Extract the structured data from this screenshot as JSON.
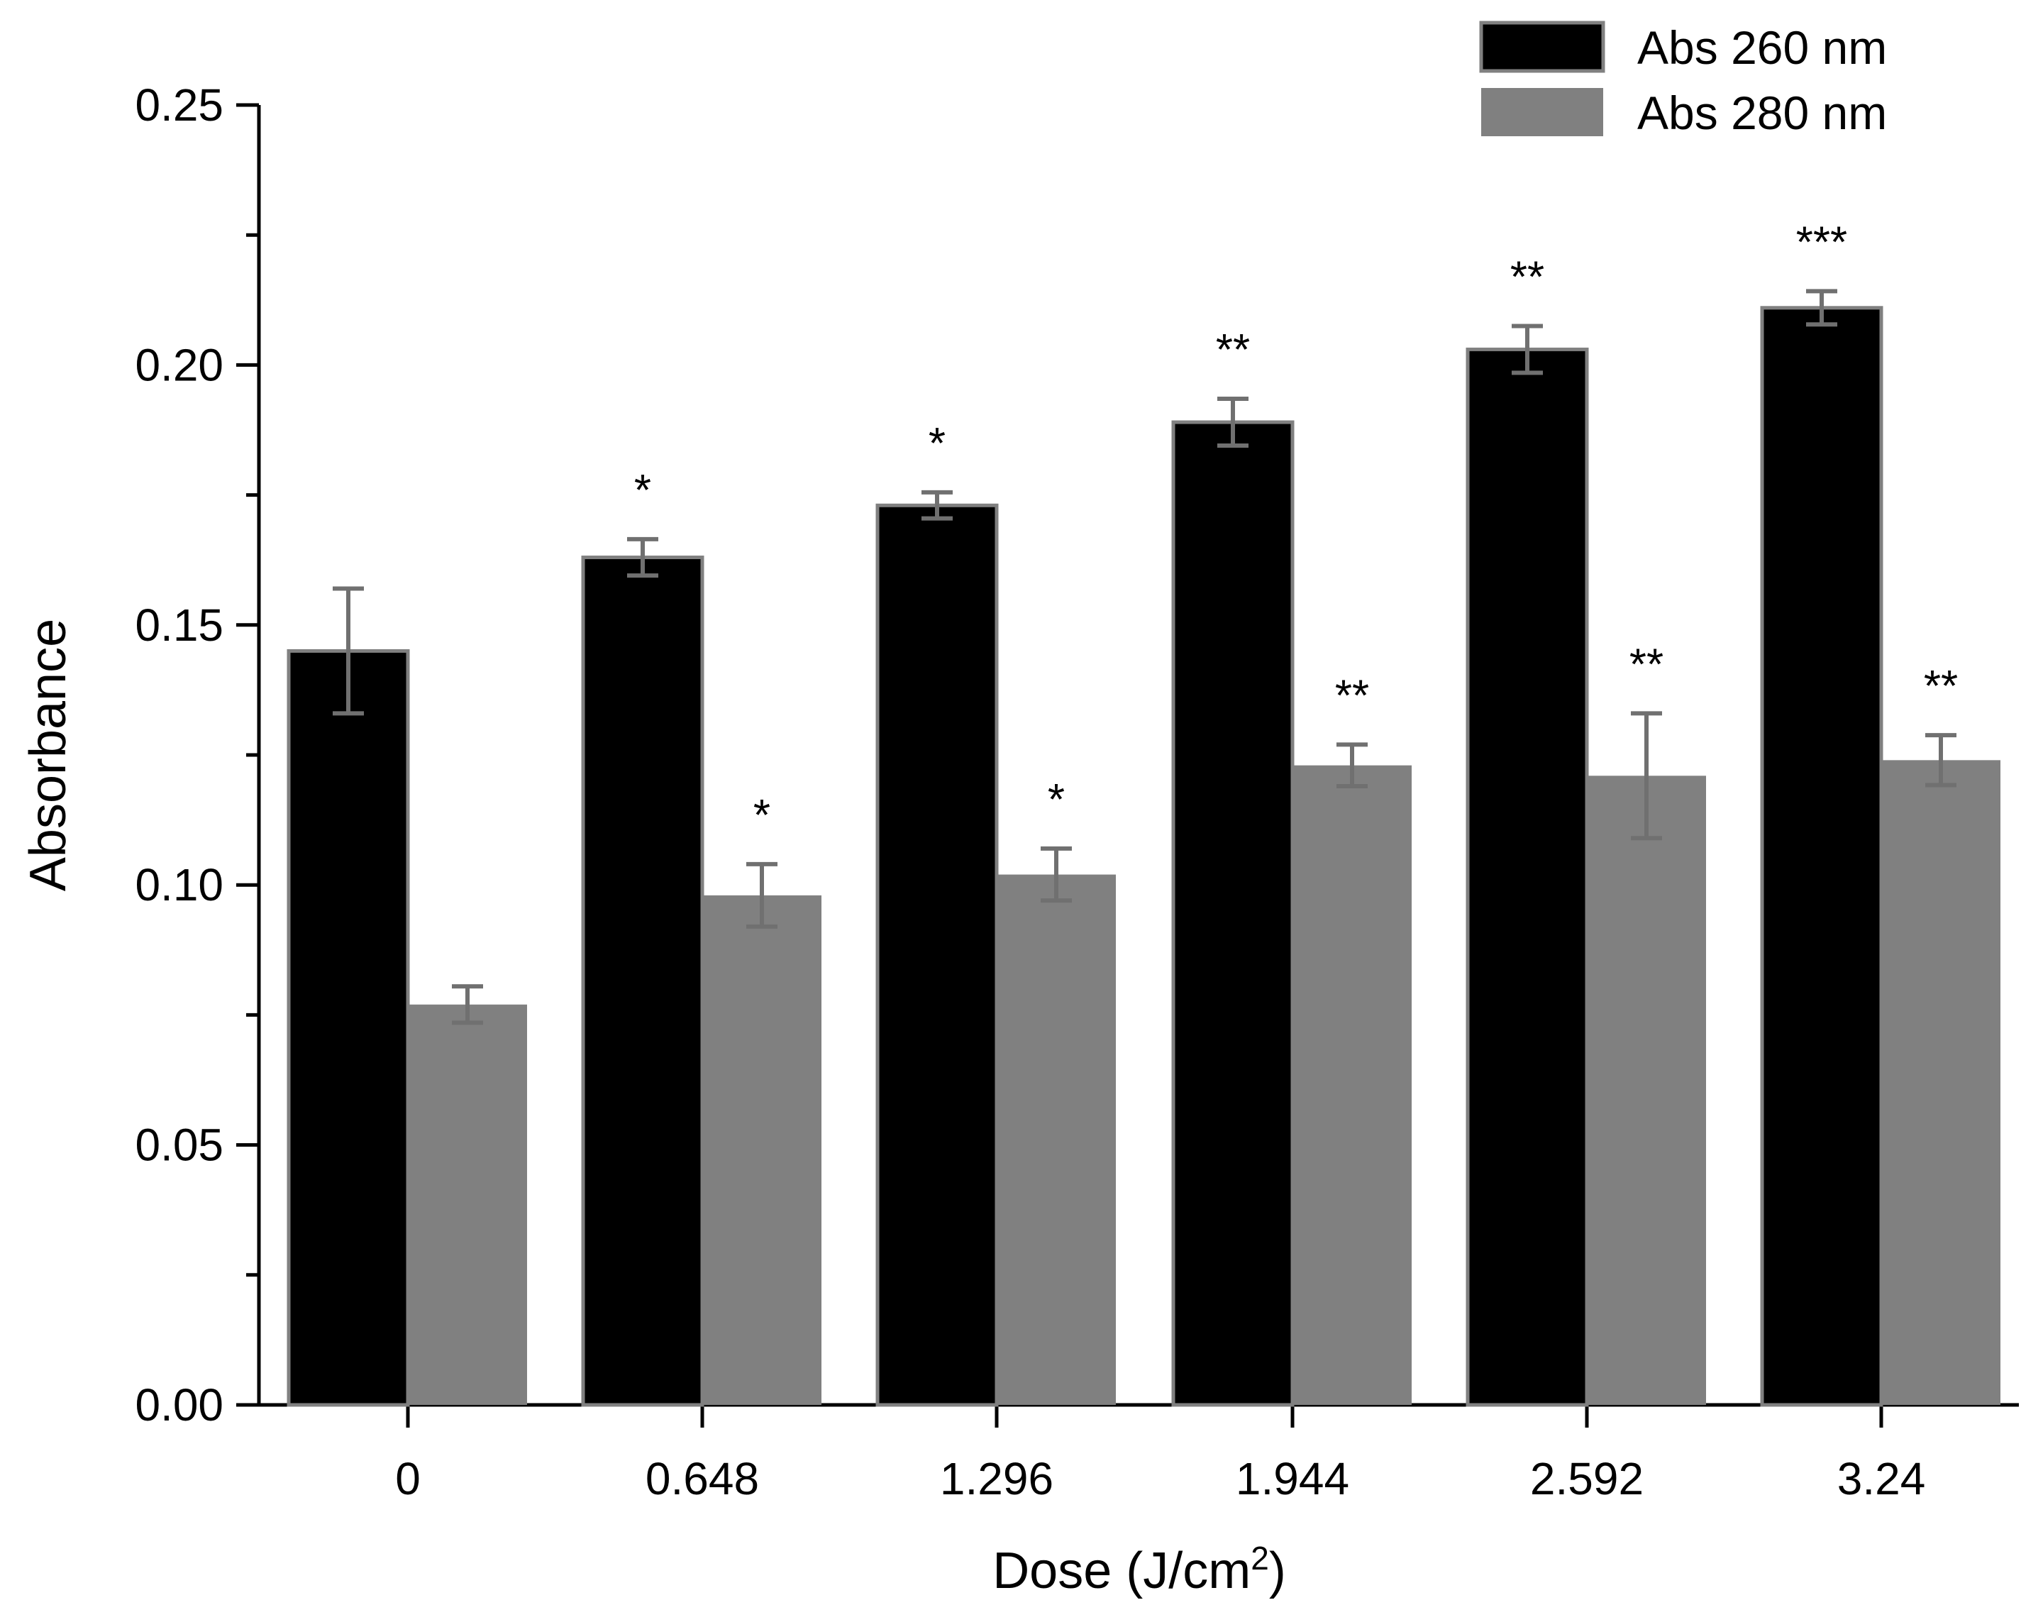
{
  "chart_data": {
    "type": "bar",
    "title": "",
    "xlabel": "Dose (J/cm",
    "xlabel_superscript": "2",
    "xlabel_suffix": ")",
    "ylabel": "Absorbance",
    "ylim": [
      0,
      0.25
    ],
    "yticks": [
      "0.00",
      "0.05",
      "0.10",
      "0.15",
      "0.20",
      "0.25"
    ],
    "ytick_values": [
      0,
      0.05,
      0.1,
      0.15,
      0.2,
      0.25
    ],
    "categories": [
      "0",
      "0.648",
      "1.296",
      "1.944",
      "2.592",
      "3.24"
    ],
    "legend_position": "top-right",
    "grid": false,
    "series": [
      {
        "name": "Abs 260 nm",
        "color": "#000000",
        "values": [
          0.145,
          0.163,
          0.173,
          0.189,
          0.203,
          0.211
        ],
        "errors": [
          0.012,
          0.0035,
          0.0025,
          0.0045,
          0.0045,
          0.0032
        ],
        "significance": [
          "",
          "*",
          "*",
          "**",
          "**",
          "***"
        ]
      },
      {
        "name": "Abs 280 nm",
        "color": "#808080",
        "values": [
          0.077,
          0.098,
          0.102,
          0.123,
          0.121,
          0.124
        ],
        "errors": [
          0.0035,
          0.006,
          0.005,
          0.004,
          0.012,
          0.0048
        ],
        "significance": [
          "",
          "*",
          "*",
          "**",
          "**",
          "**"
        ]
      }
    ],
    "error_bar_color": "#707070"
  }
}
